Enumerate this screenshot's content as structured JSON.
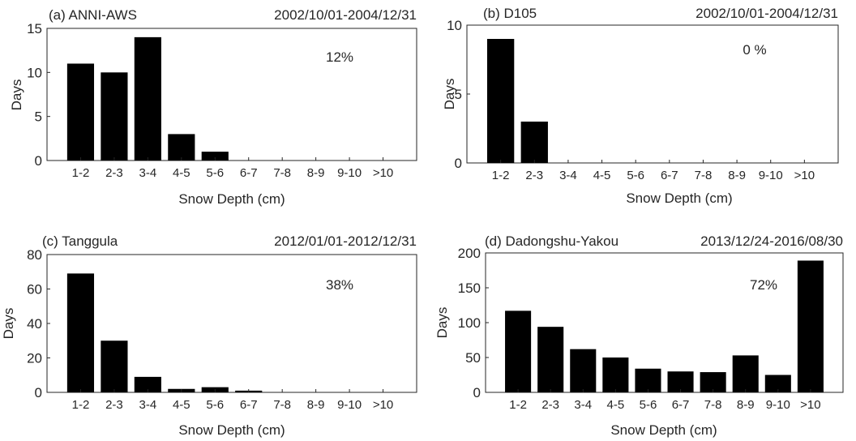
{
  "chart_data": [
    {
      "type": "bar",
      "panel_label": "(a) ANNI-AWS",
      "date_range": "2002/10/01-2004/12/31",
      "annotation": "12%",
      "categories": [
        "1-2",
        "2-3",
        "3-4",
        "4-5",
        "5-6",
        "6-7",
        "7-8",
        "8-9",
        "9-10",
        ">10"
      ],
      "values": [
        11,
        10,
        14,
        3,
        1,
        0,
        0,
        0,
        0,
        0
      ],
      "xlabel": "Snow Depth (cm)",
      "ylabel": "Days",
      "ylim": [
        0,
        15
      ],
      "yticks": [
        0,
        5,
        10,
        15
      ]
    },
    {
      "type": "bar",
      "panel_label": "(b) D105",
      "date_range": "2002/10/01-2004/12/31",
      "annotation": "0 %",
      "categories": [
        "1-2",
        "2-3",
        "3-4",
        "4-5",
        "5-6",
        "6-7",
        "7-8",
        "8-9",
        "9-10",
        ">10"
      ],
      "values": [
        9,
        3,
        0,
        0,
        0,
        0,
        0,
        0,
        0,
        0
      ],
      "xlabel": "Snow Depth (cm)",
      "ylabel": "Days",
      "ylim": [
        0,
        10
      ],
      "yticks": [
        0,
        5,
        10
      ]
    },
    {
      "type": "bar",
      "panel_label": "(c) Tanggula",
      "date_range": "2012/01/01-2012/12/31",
      "annotation": "38%",
      "categories": [
        "1-2",
        "2-3",
        "3-4",
        "4-5",
        "5-6",
        "6-7",
        "7-8",
        "8-9",
        "9-10",
        ">10"
      ],
      "values": [
        69,
        30,
        9,
        2,
        3,
        1,
        0,
        0,
        0,
        0
      ],
      "xlabel": "Snow Depth (cm)",
      "ylabel": "Days",
      "ylim": [
        0,
        80
      ],
      "yticks": [
        0,
        20,
        40,
        60,
        80
      ]
    },
    {
      "type": "bar",
      "panel_label": "(d) Dadongshu-Yakou",
      "date_range": "2013/12/24-2016/08/30",
      "annotation": "72%",
      "categories": [
        "1-2",
        "2-3",
        "3-4",
        "4-5",
        "5-6",
        "6-7",
        "7-8",
        "8-9",
        "9-10",
        ">10"
      ],
      "values": [
        117,
        94,
        62,
        50,
        34,
        30,
        29,
        53,
        25,
        189
      ],
      "xlabel": "Snow Depth (cm)",
      "ylabel": "Days",
      "ylim": [
        0,
        200
      ],
      "yticks": [
        0,
        50,
        100,
        150,
        200
      ]
    }
  ]
}
